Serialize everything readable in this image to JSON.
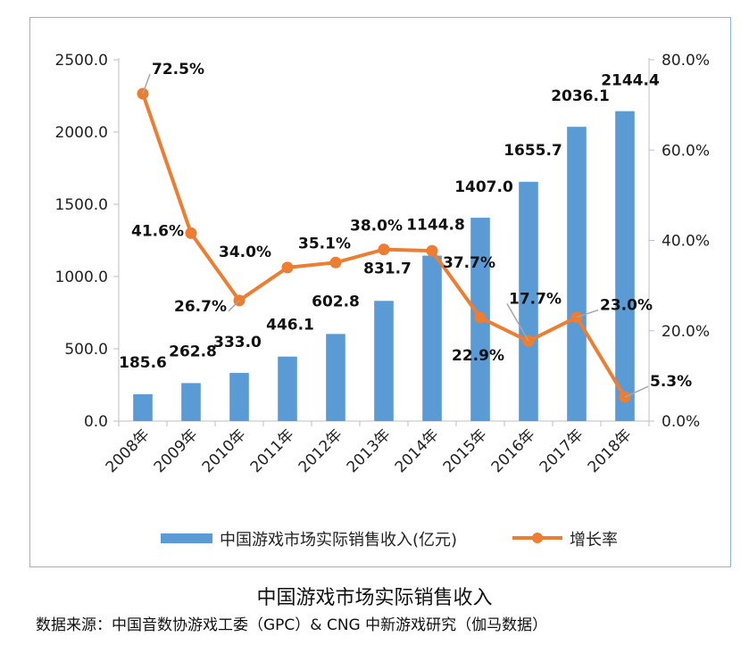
{
  "chart_data": {
    "type": "bar+line",
    "categories": [
      "2008年",
      "2009年",
      "2010年",
      "2011年",
      "2012年",
      "2013年",
      "2014年",
      "2015年",
      "2016年",
      "2017年",
      "2018年"
    ],
    "series": [
      {
        "name": "中国游戏市场实际销售收入(亿元)",
        "type": "bar",
        "axis": "left",
        "color": "#5b9bd5",
        "values": [
          185.6,
          262.8,
          333.0,
          446.1,
          602.8,
          831.7,
          1144.8,
          1407.0,
          1655.7,
          2036.1,
          2144.4
        ],
        "labels": [
          "185.6",
          "262.8",
          "333.0",
          "446.1",
          "602.8",
          "831.7",
          "1144.8",
          "1407.0",
          "1655.7",
          "2036.1",
          "2144.4"
        ]
      },
      {
        "name": "增长率",
        "type": "line",
        "axis": "right",
        "color": "#ed7d31",
        "values": [
          72.5,
          41.6,
          26.7,
          34.0,
          35.1,
          38.0,
          37.7,
          22.9,
          17.7,
          23.0,
          5.3
        ],
        "labels": [
          "72.5%",
          "41.6%",
          "26.7%",
          "34.0%",
          "35.1%",
          "38.0%",
          "37.7%",
          "22.9%",
          "17.7%",
          "23.0%",
          "5.3%"
        ]
      }
    ],
    "y_left": {
      "min": 0,
      "max": 2500,
      "ticks": [
        "0.0",
        "500.0",
        "1000.0",
        "1500.0",
        "2000.0",
        "2500.0"
      ]
    },
    "y_right": {
      "min": 0,
      "max": 80,
      "ticks": [
        "0.0%",
        "20.0%",
        "40.0%",
        "60.0%",
        "80.0%"
      ]
    },
    "legend_position": "bottom",
    "grid": false
  },
  "caption": {
    "title": "中国游戏市场实际销售收入",
    "source": "数据来源：中国音数协游戏工委（GPC）& CNG 中新游戏研究（伽马数据）"
  }
}
